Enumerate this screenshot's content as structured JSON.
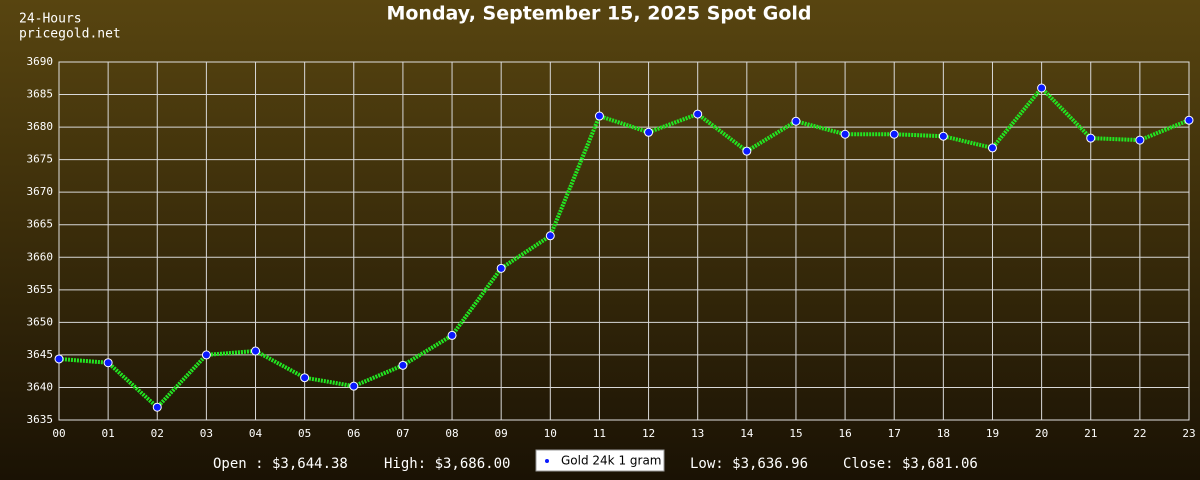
{
  "chart_data": {
    "type": "line",
    "title": "Monday, September 15, 2025 Spot Gold",
    "corner_labels": [
      "24-Hours",
      "pricegold.net"
    ],
    "categories": [
      "00",
      "01",
      "02",
      "03",
      "04",
      "05",
      "06",
      "07",
      "08",
      "09",
      "10",
      "11",
      "12",
      "13",
      "14",
      "15",
      "16",
      "17",
      "18",
      "19",
      "20",
      "21",
      "22",
      "23"
    ],
    "series": [
      {
        "name": "Gold 24k 1 gram",
        "color": "#22e622",
        "marker_color": "#0a1aff",
        "values": [
          3644.38,
          3643.8,
          3636.96,
          3645.0,
          3645.6,
          3641.5,
          3640.2,
          3643.4,
          3648.0,
          3658.3,
          3663.3,
          3681.7,
          3679.2,
          3682.0,
          3676.3,
          3680.9,
          3678.9,
          3678.9,
          3678.6,
          3676.8,
          3686.0,
          3678.3,
          3678.0,
          3681.06
        ]
      }
    ],
    "ylim": [
      3635,
      3690
    ],
    "yticks": [
      3635,
      3640,
      3645,
      3650,
      3655,
      3660,
      3665,
      3670,
      3675,
      3680,
      3685,
      3690
    ],
    "grid": true,
    "summary": [
      "Open : $3,644.38",
      "High: $3,686.00",
      "Low: $3,636.96",
      "Close: $3,681.06"
    ]
  }
}
